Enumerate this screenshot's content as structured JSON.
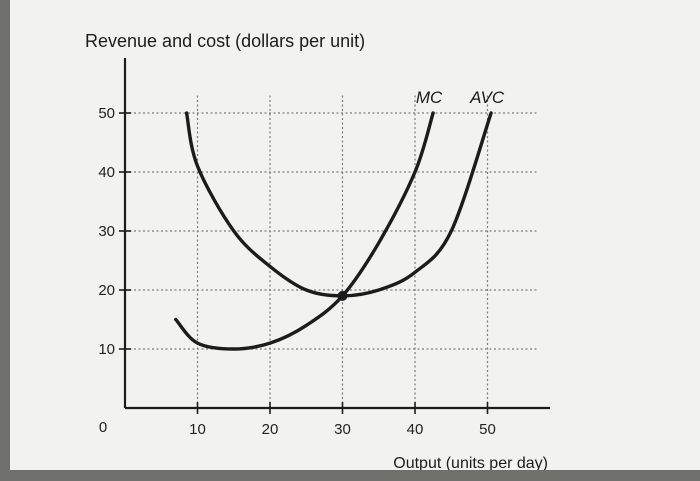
{
  "chart_data": {
    "type": "line",
    "title": "",
    "ylabel": "Revenue and cost (dollars per unit)",
    "xlabel": "Output (units per day)",
    "xlim": [
      0,
      57
    ],
    "ylim": [
      0,
      55
    ],
    "x_ticks": [
      10,
      20,
      30,
      40,
      50
    ],
    "y_ticks": [
      10,
      20,
      30,
      40,
      50
    ],
    "origin_label": "0",
    "grid": true,
    "grid_style": "dotted",
    "series": [
      {
        "name": "MC",
        "x": [
          7,
          10,
          15,
          20,
          25,
          30,
          35,
          40,
          42.5
        ],
        "y": [
          15,
          11,
          10,
          11,
          14,
          19,
          28,
          40,
          50
        ]
      },
      {
        "name": "AVC",
        "x": [
          8.5,
          10,
          15,
          20,
          25,
          30,
          35,
          40,
          45,
          50.5
        ],
        "y": [
          50,
          41,
          30,
          24,
          20,
          19,
          20,
          23,
          30,
          50
        ]
      }
    ],
    "highlight_point": {
      "x": 30,
      "y": 19
    }
  },
  "colors": {
    "paper": "#f2f3f1",
    "ink": "#1c1c1c",
    "grid": "#7a7a7a",
    "background": "#6f6f6c"
  }
}
